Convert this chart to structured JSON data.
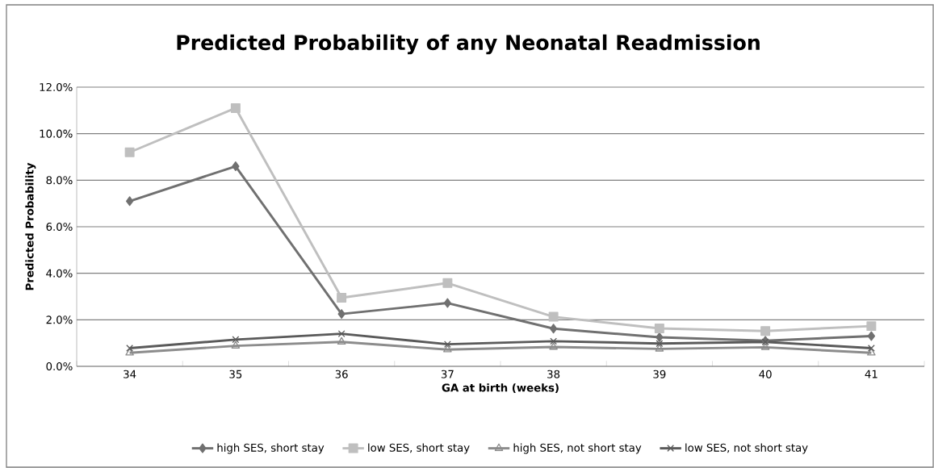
{
  "chart_data": {
    "type": "line",
    "title": "Predicted Probability of any Neonatal Readmission",
    "xlabel": "GA at birth (weeks)",
    "ylabel": "Predicted Probability",
    "categories": [
      "34",
      "35",
      "36",
      "37",
      "38",
      "39",
      "40",
      "41"
    ],
    "series": [
      {
        "name": "high SES, short stay",
        "color": "#707070",
        "marker": "diamond",
        "values": [
          7.1,
          8.6,
          2.25,
          2.72,
          1.62,
          1.25,
          1.1,
          1.3
        ]
      },
      {
        "name": "low SES, short stay",
        "color": "#bfbfbf",
        "marker": "square",
        "values": [
          9.2,
          11.1,
          2.95,
          3.58,
          2.13,
          1.63,
          1.52,
          1.73
        ]
      },
      {
        "name": "high SES, not short stay",
        "color": "#8c8c8c",
        "marker": "triangle",
        "values": [
          0.58,
          0.88,
          1.05,
          0.72,
          0.83,
          0.75,
          0.82,
          0.58
        ]
      },
      {
        "name": "low SES, not short stay",
        "color": "#5a5a5a",
        "marker": "cross",
        "values": [
          0.78,
          1.15,
          1.4,
          0.95,
          1.08,
          0.98,
          1.05,
          0.78
        ]
      }
    ],
    "ylim": [
      0,
      12
    ],
    "yticks": [
      {
        "value": 0,
        "label": "0.0%"
      },
      {
        "value": 2,
        "label": "2.0%"
      },
      {
        "value": 4,
        "label": "4.0%"
      },
      {
        "value": 6,
        "label": "6.0%"
      },
      {
        "value": 8,
        "label": "8.0%"
      },
      {
        "value": 10,
        "label": "10.0%"
      },
      {
        "value": 12,
        "label": "12.0%"
      }
    ],
    "grid": "y",
    "legend": "bottom",
    "line_style": "solid"
  }
}
